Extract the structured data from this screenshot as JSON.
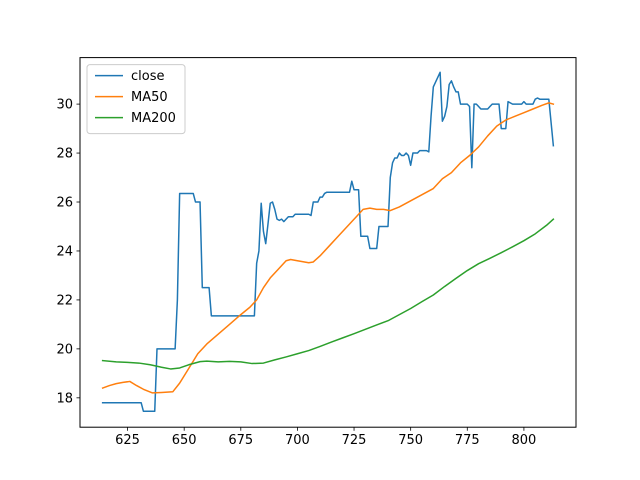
{
  "chart_data": {
    "type": "line",
    "title": "",
    "xlabel": "",
    "ylabel": "",
    "xlim": [
      604,
      823
    ],
    "ylim": [
      16.8,
      31.9
    ],
    "xticks": [
      625,
      650,
      675,
      700,
      725,
      750,
      775,
      800
    ],
    "yticks": [
      18,
      20,
      22,
      24,
      26,
      28,
      30
    ],
    "grid": false,
    "legend": "upper-left",
    "series": [
      {
        "name": "close",
        "color": "#1f77b4",
        "points": [
          [
            614,
            17.8
          ],
          [
            631,
            17.8
          ],
          [
            632,
            17.45
          ],
          [
            637,
            17.45
          ],
          [
            638,
            20.0
          ],
          [
            646,
            20.0
          ],
          [
            647,
            22.0
          ],
          [
            648,
            26.35
          ],
          [
            654,
            26.35
          ],
          [
            655,
            26.0
          ],
          [
            657,
            26.0
          ],
          [
            658,
            22.5
          ],
          [
            661,
            22.5
          ],
          [
            662,
            21.35
          ],
          [
            681,
            21.35
          ],
          [
            682,
            23.5
          ],
          [
            683,
            24.0
          ],
          [
            684,
            25.95
          ],
          [
            685,
            24.8
          ],
          [
            686,
            24.3
          ],
          [
            687,
            25.1
          ],
          [
            688,
            25.95
          ],
          [
            689,
            26.0
          ],
          [
            690,
            25.7
          ],
          [
            691,
            25.3
          ],
          [
            692,
            25.25
          ],
          [
            693,
            25.3
          ],
          [
            694,
            25.2
          ],
          [
            695,
            25.3
          ],
          [
            696,
            25.4
          ],
          [
            698,
            25.4
          ],
          [
            699,
            25.5
          ],
          [
            705,
            25.5
          ],
          [
            706,
            25.45
          ],
          [
            707,
            26.0
          ],
          [
            709,
            26.0
          ],
          [
            710,
            26.2
          ],
          [
            711,
            26.2
          ],
          [
            712,
            26.35
          ],
          [
            713,
            26.4
          ],
          [
            723,
            26.4
          ],
          [
            724,
            26.85
          ],
          [
            725,
            26.5
          ],
          [
            727,
            26.5
          ],
          [
            728,
            24.6
          ],
          [
            731,
            24.6
          ],
          [
            732,
            24.1
          ],
          [
            735,
            24.1
          ],
          [
            736,
            25.0
          ],
          [
            740,
            25.0
          ],
          [
            741,
            27.0
          ],
          [
            742,
            27.6
          ],
          [
            743,
            27.8
          ],
          [
            744,
            27.8
          ],
          [
            745,
            28.0
          ],
          [
            746,
            27.9
          ],
          [
            747,
            27.9
          ],
          [
            748,
            28.0
          ],
          [
            749,
            27.9
          ],
          [
            750,
            27.5
          ],
          [
            751,
            28.0
          ],
          [
            752,
            28.0
          ],
          [
            753,
            28.0
          ],
          [
            754,
            28.1
          ],
          [
            757,
            28.1
          ],
          [
            758,
            28.05
          ],
          [
            759,
            29.5
          ],
          [
            760,
            30.7
          ],
          [
            761,
            30.9
          ],
          [
            762,
            31.1
          ],
          [
            763,
            31.3
          ],
          [
            764,
            29.3
          ],
          [
            765,
            29.5
          ],
          [
            766,
            29.9
          ],
          [
            767,
            30.8
          ],
          [
            768,
            30.95
          ],
          [
            769,
            30.7
          ],
          [
            770,
            30.5
          ],
          [
            771,
            30.5
          ],
          [
            772,
            30.0
          ],
          [
            775,
            30.0
          ],
          [
            776,
            29.9
          ],
          [
            777,
            27.4
          ],
          [
            778,
            30.0
          ],
          [
            779,
            30.0
          ],
          [
            780,
            29.9
          ],
          [
            781,
            29.8
          ],
          [
            784,
            29.8
          ],
          [
            785,
            29.9
          ],
          [
            786,
            30.0
          ],
          [
            789,
            30.0
          ],
          [
            790,
            29.0
          ],
          [
            792,
            29.0
          ],
          [
            793,
            30.1
          ],
          [
            795,
            30.0
          ],
          [
            799,
            30.0
          ],
          [
            800,
            30.1
          ],
          [
            801,
            30.0
          ],
          [
            804,
            30.0
          ],
          [
            805,
            30.2
          ],
          [
            806,
            30.25
          ],
          [
            807,
            30.2
          ],
          [
            811,
            30.2
          ],
          [
            813,
            28.3
          ]
        ]
      },
      {
        "name": "MA50",
        "color": "#ff7f0e",
        "points": [
          [
            614,
            18.4
          ],
          [
            617,
            18.5
          ],
          [
            620,
            18.58
          ],
          [
            623,
            18.63
          ],
          [
            626,
            18.67
          ],
          [
            629,
            18.5
          ],
          [
            632,
            18.35
          ],
          [
            636,
            18.2
          ],
          [
            640,
            18.22
          ],
          [
            645,
            18.25
          ],
          [
            648,
            18.6
          ],
          [
            652,
            19.2
          ],
          [
            656,
            19.8
          ],
          [
            660,
            20.2
          ],
          [
            665,
            20.6
          ],
          [
            670,
            21.0
          ],
          [
            675,
            21.4
          ],
          [
            679,
            21.7
          ],
          [
            682,
            22.0
          ],
          [
            685,
            22.5
          ],
          [
            688,
            22.9
          ],
          [
            692,
            23.3
          ],
          [
            695,
            23.6
          ],
          [
            697,
            23.65
          ],
          [
            700,
            23.6
          ],
          [
            705,
            23.52
          ],
          [
            707,
            23.55
          ],
          [
            710,
            23.8
          ],
          [
            714,
            24.2
          ],
          [
            718,
            24.6
          ],
          [
            722,
            25.0
          ],
          [
            726,
            25.4
          ],
          [
            729,
            25.7
          ],
          [
            732,
            25.75
          ],
          [
            735,
            25.7
          ],
          [
            738,
            25.7
          ],
          [
            741,
            25.65
          ],
          [
            745,
            25.8
          ],
          [
            750,
            26.05
          ],
          [
            755,
            26.3
          ],
          [
            760,
            26.55
          ],
          [
            764,
            26.95
          ],
          [
            768,
            27.2
          ],
          [
            772,
            27.6
          ],
          [
            776,
            27.9
          ],
          [
            780,
            28.25
          ],
          [
            784,
            28.7
          ],
          [
            788,
            29.1
          ],
          [
            792,
            29.35
          ],
          [
            796,
            29.5
          ],
          [
            800,
            29.65
          ],
          [
            804,
            29.8
          ],
          [
            808,
            29.95
          ],
          [
            811,
            30.05
          ],
          [
            813,
            30.0
          ]
        ]
      },
      {
        "name": "MA200",
        "color": "#2ca02c",
        "points": [
          [
            614,
            19.52
          ],
          [
            620,
            19.47
          ],
          [
            625,
            19.45
          ],
          [
            630,
            19.42
          ],
          [
            635,
            19.35
          ],
          [
            640,
            19.25
          ],
          [
            644,
            19.18
          ],
          [
            648,
            19.22
          ],
          [
            652,
            19.35
          ],
          [
            657,
            19.48
          ],
          [
            660,
            19.5
          ],
          [
            665,
            19.47
          ],
          [
            670,
            19.49
          ],
          [
            675,
            19.47
          ],
          [
            680,
            19.4
          ],
          [
            685,
            19.42
          ],
          [
            690,
            19.55
          ],
          [
            695,
            19.67
          ],
          [
            700,
            19.8
          ],
          [
            705,
            19.93
          ],
          [
            710,
            20.1
          ],
          [
            715,
            20.28
          ],
          [
            720,
            20.45
          ],
          [
            725,
            20.62
          ],
          [
            730,
            20.8
          ],
          [
            735,
            20.98
          ],
          [
            740,
            21.15
          ],
          [
            745,
            21.4
          ],
          [
            750,
            21.65
          ],
          [
            755,
            21.93
          ],
          [
            760,
            22.2
          ],
          [
            765,
            22.55
          ],
          [
            770,
            22.88
          ],
          [
            775,
            23.2
          ],
          [
            780,
            23.48
          ],
          [
            785,
            23.7
          ],
          [
            790,
            23.93
          ],
          [
            795,
            24.17
          ],
          [
            800,
            24.42
          ],
          [
            805,
            24.7
          ],
          [
            810,
            25.05
          ],
          [
            813,
            25.3
          ]
        ]
      }
    ]
  }
}
